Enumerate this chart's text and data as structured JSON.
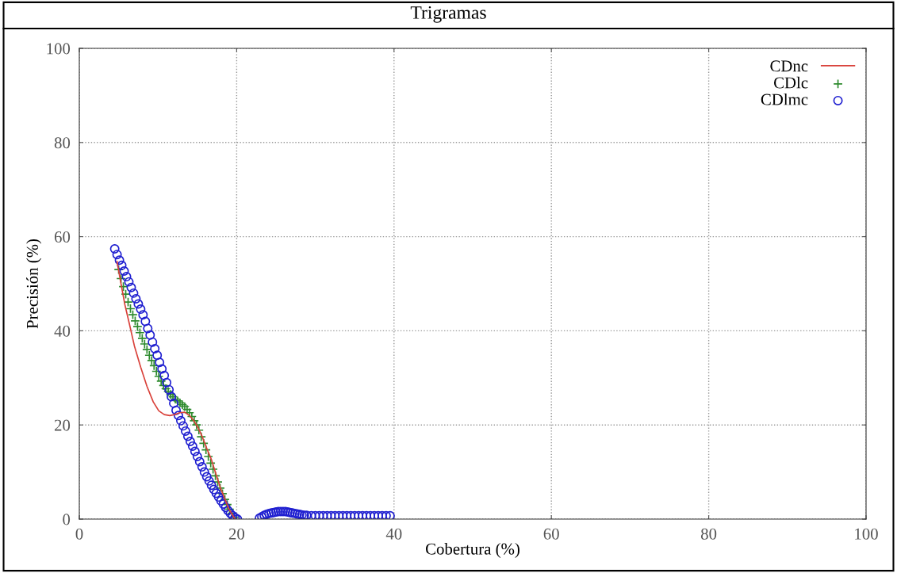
{
  "chart_data": {
    "type": "line",
    "title": "Trigramas",
    "xlabel": "Cobertura (%)",
    "ylabel": "Precisión (%)",
    "xlim": [
      0,
      100
    ],
    "ylim": [
      0,
      100
    ],
    "xticks": [
      0,
      20,
      40,
      60,
      80,
      100
    ],
    "yticks": [
      0,
      20,
      40,
      60,
      80,
      100
    ],
    "grid": true,
    "legend": "top right",
    "series": [
      {
        "name": "CDnc",
        "color": "#d9413a",
        "marker": "none",
        "line_style": "solid",
        "x": [
          4.8,
          5.3,
          5.8,
          6.4,
          7.0,
          7.8,
          8.6,
          9.4,
          10.1,
          10.8,
          11.5,
          12.1,
          12.8,
          13.4,
          14.0,
          14.6,
          15.1,
          15.6,
          16.2,
          16.8,
          17.4,
          17.9,
          18.4,
          19.0,
          19.5,
          19.8
        ],
        "values": [
          54.7,
          50.0,
          45.5,
          41.2,
          36.8,
          32.3,
          28.2,
          24.9,
          23.0,
          22.2,
          22.0,
          22.2,
          22.6,
          22.7,
          22.0,
          20.8,
          19.4,
          17.6,
          15.0,
          12.6,
          9.4,
          6.8,
          4.7,
          2.2,
          0.8,
          0.0
        ]
      },
      {
        "name": "CDlc",
        "type": "scatter",
        "color": "#2e8b2e",
        "marker": "cross",
        "x": [
          5.0,
          5.3,
          5.6,
          5.9,
          6.2,
          6.5,
          6.8,
          7.1,
          7.4,
          7.7,
          8.0,
          8.3,
          8.6,
          8.9,
          9.2,
          9.5,
          9.8,
          10.1,
          10.4,
          10.7,
          11.0,
          11.3,
          11.6,
          11.9,
          12.2,
          12.5,
          12.8,
          13.1,
          13.4,
          13.7,
          14.0,
          14.3,
          14.6,
          14.9,
          15.2,
          15.5,
          15.8,
          16.1,
          16.4,
          16.7,
          17.0,
          17.3,
          17.6,
          17.9,
          18.2,
          18.5,
          18.8,
          19.1,
          19.4,
          19.7
        ],
        "values": [
          53.0,
          51.1,
          49.4,
          47.8,
          46.1,
          44.7,
          43.4,
          42.1,
          40.9,
          39.6,
          38.4,
          37.2,
          36.0,
          34.8,
          33.7,
          32.6,
          31.4,
          30.3,
          29.3,
          28.4,
          27.7,
          27.1,
          26.5,
          26.0,
          25.5,
          25.1,
          24.7,
          24.3,
          23.9,
          23.3,
          22.6,
          21.8,
          20.9,
          20.0,
          18.9,
          17.5,
          16.1,
          14.7,
          13.3,
          11.9,
          10.6,
          9.2,
          7.9,
          6.6,
          5.4,
          4.2,
          3.1,
          2.1,
          1.2,
          0.4
        ]
      },
      {
        "name": "CDlmc",
        "type": "scatter",
        "color": "#1f1fd0",
        "marker": "circle",
        "x": [
          4.5,
          4.8,
          5.1,
          5.4,
          5.7,
          6.0,
          6.3,
          6.6,
          6.9,
          7.2,
          7.5,
          7.8,
          8.1,
          8.4,
          8.7,
          9.0,
          9.3,
          9.6,
          9.9,
          10.2,
          10.5,
          10.8,
          11.1,
          11.4,
          11.7,
          12.0,
          12.3,
          12.6,
          12.9,
          13.2,
          13.5,
          13.8,
          14.1,
          14.4,
          14.7,
          15.0,
          15.3,
          15.6,
          15.9,
          16.2,
          16.5,
          16.8,
          17.1,
          17.4,
          17.7,
          18.0,
          18.3,
          18.6,
          18.9,
          19.2,
          19.5,
          19.8,
          20.1,
          22.9,
          23.2,
          23.5,
          23.8,
          24.1,
          24.4,
          24.7,
          25.0,
          25.3,
          25.6,
          25.9,
          26.2,
          26.5,
          26.8,
          27.1,
          27.4,
          27.7,
          28.0,
          28.3,
          28.6,
          28.9,
          29.5,
          30.0,
          30.5,
          31.0,
          31.5,
          32.0,
          32.5,
          33.0,
          33.5,
          34.0,
          34.5,
          35.0,
          35.5,
          36.0,
          36.5,
          37.0,
          37.5,
          38.0,
          38.5,
          39.0,
          39.5
        ],
        "values": [
          57.4,
          56.2,
          55.0,
          53.9,
          52.7,
          51.5,
          50.4,
          49.2,
          48.0,
          46.8,
          45.7,
          44.6,
          43.4,
          42.0,
          40.5,
          39.1,
          37.6,
          36.2,
          34.8,
          33.3,
          31.9,
          30.5,
          29.0,
          27.5,
          26.0,
          24.6,
          23.1,
          22.0,
          20.9,
          19.8,
          18.7,
          17.6,
          16.5,
          15.5,
          14.4,
          13.3,
          12.2,
          11.1,
          10.0,
          9.0,
          8.1,
          7.2,
          6.3,
          5.5,
          4.7,
          3.9,
          3.2,
          2.5,
          1.8,
          1.2,
          0.7,
          0.3,
          0.0,
          0.2,
          0.5,
          0.8,
          1.0,
          1.2,
          1.3,
          1.4,
          1.5,
          1.6,
          1.6,
          1.6,
          1.6,
          1.5,
          1.4,
          1.3,
          1.2,
          1.1,
          1.0,
          0.9,
          0.8,
          0.8,
          0.7,
          0.7,
          0.7,
          0.7,
          0.7,
          0.7,
          0.7,
          0.7,
          0.7,
          0.7,
          0.7,
          0.7,
          0.7,
          0.7,
          0.7,
          0.7,
          0.7,
          0.7,
          0.7,
          0.7,
          0.7
        ]
      }
    ]
  }
}
